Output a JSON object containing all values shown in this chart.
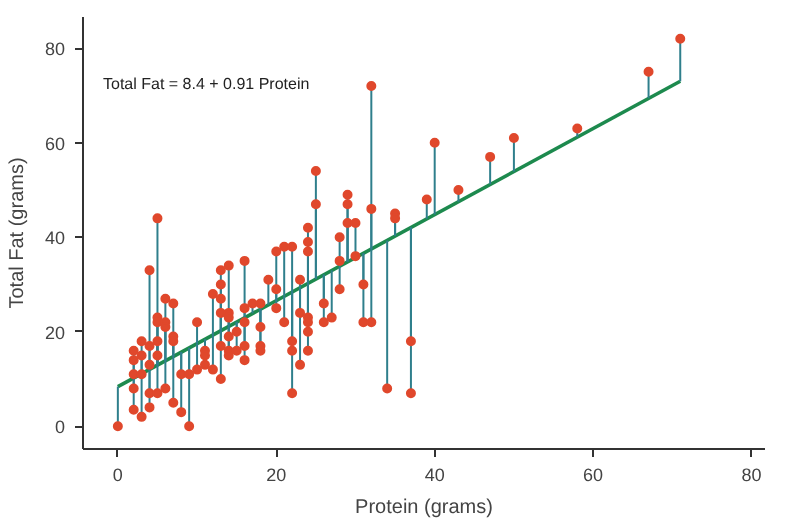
{
  "chart_data": {
    "type": "scatter",
    "xlabel": "Protein (grams)",
    "ylabel": "Total Fat (grams)",
    "annotations": [
      "Total Fat = 8.4 + 0.91 Protein"
    ],
    "xlim": [
      -4.4,
      81.7
    ],
    "ylim": [
      -4.8,
      86.6
    ],
    "xticks": [
      0,
      20,
      40,
      60,
      80
    ],
    "yticks": [
      0,
      20,
      40,
      60,
      80
    ],
    "grid": false,
    "series": [
      {
        "color": "#e0482c",
        "marker": "circle",
        "x": [
          0,
          2,
          2,
          2,
          2,
          2,
          3,
          3,
          3,
          3,
          4,
          4,
          4,
          4,
          4,
          5,
          5,
          5,
          5,
          5,
          5,
          6,
          6,
          6,
          6,
          7,
          7,
          7,
          7,
          8,
          8,
          9,
          9,
          10,
          10,
          11,
          11,
          11,
          12,
          12,
          13,
          13,
          13,
          13,
          13,
          13,
          14,
          14,
          14,
          14,
          14,
          14,
          15,
          15,
          16,
          16,
          16,
          16,
          16,
          17,
          18,
          18,
          18,
          18,
          19,
          20,
          20,
          20,
          21,
          21,
          22,
          22,
          22,
          22,
          23,
          23,
          23,
          24,
          24,
          24,
          24,
          24,
          24,
          24,
          25,
          25,
          26,
          26,
          27,
          28,
          28,
          28,
          29,
          29,
          29,
          30,
          30,
          31,
          31,
          32,
          32,
          32,
          34,
          35,
          35,
          37,
          37,
          39,
          40,
          43,
          47,
          50,
          58,
          67,
          71
        ],
        "values": [
          0,
          16,
          14,
          11,
          8,
          3.5,
          18,
          15,
          11,
          2,
          33,
          17,
          13,
          7,
          4,
          44,
          23,
          22,
          18,
          15,
          7,
          27,
          22,
          21,
          8,
          26,
          19,
          18,
          5,
          11,
          3,
          11,
          0,
          22,
          12,
          16,
          15,
          13,
          28,
          12,
          33,
          30,
          27,
          24,
          17,
          10,
          34,
          24,
          23,
          19,
          16,
          15,
          20,
          16,
          35,
          25,
          22,
          17,
          14,
          26,
          26,
          21,
          17,
          16,
          31,
          37,
          29,
          25,
          38,
          22,
          38,
          18,
          16,
          7,
          31,
          24,
          13,
          42,
          39,
          37,
          23,
          22,
          20,
          16,
          54,
          47,
          26,
          22,
          23,
          40,
          35,
          29,
          49,
          47,
          43,
          43,
          36,
          30,
          22,
          72,
          46,
          22,
          8,
          45,
          44,
          18,
          7,
          48,
          60,
          50,
          57,
          61,
          63,
          75,
          82
        ],
        "errors": [
          [
            0,
            8.4
          ],
          [
            10.2,
            16
          ],
          [
            10.2,
            14
          ],
          [
            10.2,
            11
          ],
          [
            8,
            10.2
          ],
          [
            3.5,
            10.2
          ],
          [
            11.1,
            18
          ],
          [
            11.1,
            15
          ],
          [
            11,
            11.1
          ],
          [
            2,
            11.1
          ],
          [
            12,
            33
          ],
          [
            12,
            17
          ],
          [
            12,
            13
          ],
          [
            7,
            12
          ],
          [
            4,
            12
          ],
          [
            12.9,
            44
          ],
          [
            12.9,
            23
          ],
          [
            12.9,
            22
          ],
          [
            12.9,
            18
          ],
          [
            12.9,
            15
          ],
          [
            7,
            12.9
          ],
          [
            13.9,
            27
          ],
          [
            13.9,
            22
          ],
          [
            13.9,
            21
          ],
          [
            8,
            13.9
          ],
          [
            14.8,
            26
          ],
          [
            14.8,
            19
          ],
          [
            14.8,
            18
          ],
          [
            5,
            14.8
          ],
          [
            11,
            15.7
          ],
          [
            3,
            15.7
          ],
          [
            11,
            16.6
          ],
          [
            0,
            16.6
          ],
          [
            17.5,
            22
          ],
          [
            12,
            17.5
          ],
          [
            16,
            18.4
          ],
          [
            15,
            18.4
          ],
          [
            13,
            18.4
          ],
          [
            19.3,
            28
          ],
          [
            12,
            19.3
          ],
          [
            20.2,
            33
          ],
          [
            20.2,
            30
          ],
          [
            20.2,
            27
          ],
          [
            20.2,
            24
          ],
          [
            17,
            20.2
          ],
          [
            10,
            20.2
          ],
          [
            21.1,
            34
          ],
          [
            21.1,
            24
          ],
          [
            21.1,
            23
          ],
          [
            19,
            21.1
          ],
          [
            16,
            21.1
          ],
          [
            15,
            21.1
          ],
          [
            20,
            22.1
          ],
          [
            16,
            22.1
          ],
          [
            23,
            35
          ],
          [
            23,
            25
          ],
          [
            22,
            23
          ],
          [
            17,
            23
          ],
          [
            14,
            23
          ],
          [
            23.9,
            26
          ],
          [
            24.8,
            26
          ],
          [
            21,
            24.8
          ],
          [
            17,
            24.8
          ],
          [
            16,
            24.8
          ],
          [
            25.7,
            31
          ],
          [
            26.6,
            37
          ],
          [
            26.6,
            29
          ],
          [
            25,
            26.6
          ],
          [
            27.5,
            38
          ],
          [
            22,
            27.5
          ],
          [
            28.4,
            38
          ],
          [
            18,
            28.4
          ],
          [
            16,
            28.4
          ],
          [
            7,
            28.4
          ],
          [
            29.3,
            31
          ],
          [
            24,
            29.3
          ],
          [
            13,
            29.3
          ],
          [
            30.2,
            42
          ],
          [
            30.2,
            39
          ],
          [
            30.2,
            37
          ],
          [
            23,
            30.2
          ],
          [
            22,
            30.2
          ],
          [
            20,
            30.2
          ],
          [
            16,
            30.2
          ],
          [
            31.2,
            54
          ],
          [
            31.2,
            47
          ],
          [
            26,
            32.1
          ],
          [
            22,
            32.1
          ],
          [
            23,
            33
          ],
          [
            33.9,
            40
          ],
          [
            33.9,
            35
          ],
          [
            29,
            33.9
          ],
          [
            34.8,
            49
          ],
          [
            34.8,
            47
          ],
          [
            34.8,
            43
          ],
          [
            35.7,
            43
          ],
          [
            35.7,
            36
          ],
          [
            30,
            36.6
          ],
          [
            22,
            36.6
          ],
          [
            37.5,
            72
          ],
          [
            37.5,
            46
          ],
          [
            22,
            37.5
          ],
          [
            8,
            39.3
          ],
          [
            40.3,
            45
          ],
          [
            40.3,
            44
          ],
          [
            18,
            42.1
          ],
          [
            7,
            42.1
          ],
          [
            43.9,
            48
          ],
          [
            44.8,
            60
          ],
          [
            47.5,
            50
          ],
          [
            51.2,
            57
          ],
          [
            53.9,
            61
          ],
          [
            61.2,
            63
          ],
          [
            69.4,
            75
          ],
          [
            73,
            82
          ]
        ]
      },
      {
        "type": "line",
        "color": "#1d8a4e",
        "x": [
          0,
          71
        ],
        "values": [
          8.4,
          73.0
        ]
      }
    ]
  }
}
